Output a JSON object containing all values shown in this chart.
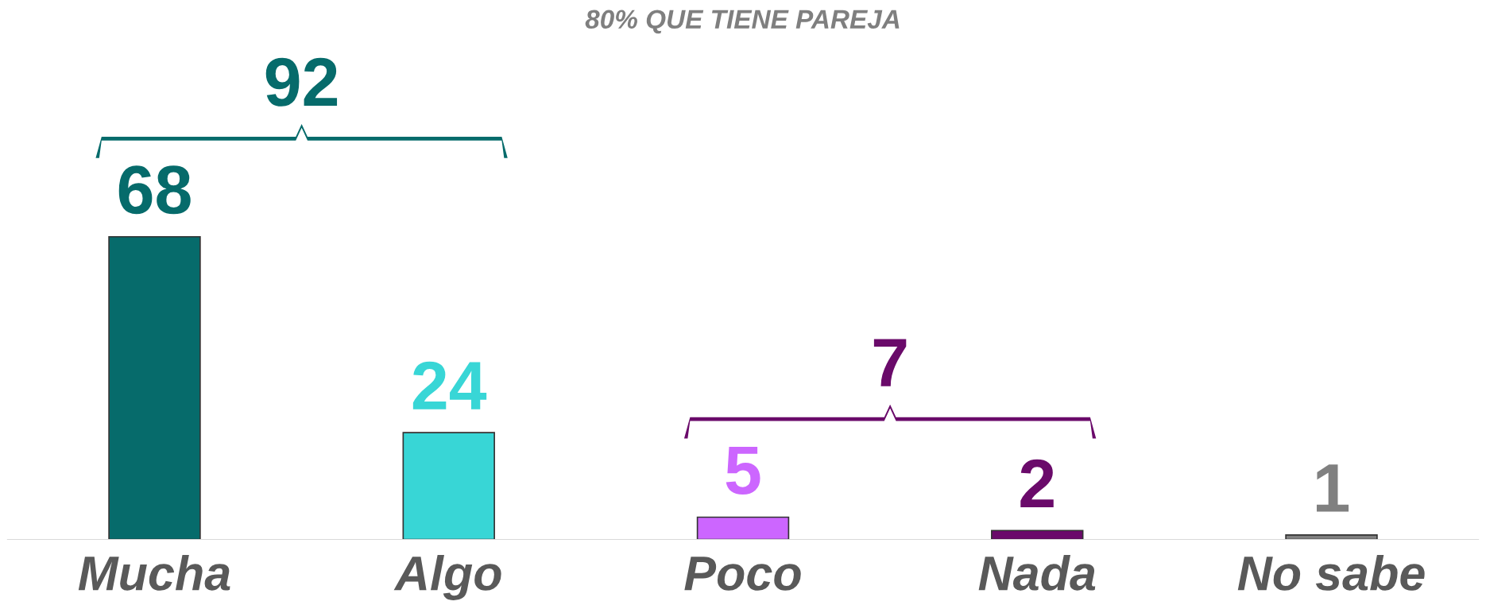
{
  "chart_data": {
    "type": "bar",
    "title": "80% QUE TIENE PAREJA",
    "categories": [
      "Mucha",
      "Algo",
      "Poco",
      "Nada",
      "No sabe"
    ],
    "values": [
      68,
      24,
      5,
      2,
      1
    ],
    "colors": [
      "#066b6b",
      "#38d6d6",
      "#cc66ff",
      "#6a0a6a",
      "#808080"
    ],
    "data_labels": true,
    "grid": false,
    "legend": false,
    "tick_labels": "x",
    "annotations": [
      "92",
      "7"
    ]
  }
}
